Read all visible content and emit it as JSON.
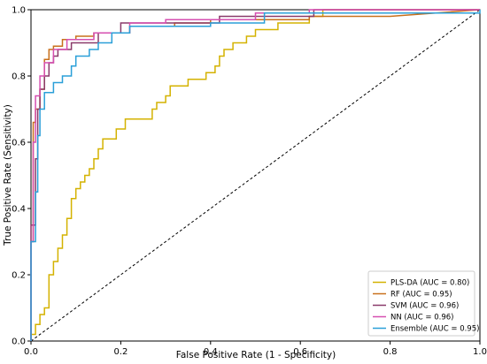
{
  "chart_data": {
    "type": "line",
    "title": "",
    "xlabel": "False Positive Rate (1 - Specificity)",
    "ylabel": "True Positive Rate (Sensitivity)",
    "xlim": [
      0,
      1
    ],
    "ylim": [
      0,
      1
    ],
    "xticks": [
      "0.0",
      "0.2",
      "0.4",
      "0.6",
      "0.8",
      "1.0"
    ],
    "yticks": [
      "0.0",
      "0.2",
      "0.4",
      "0.6",
      "0.8",
      "1.0"
    ],
    "grid": false,
    "legend_position": "lower-right",
    "chance_line": {
      "style": "dashed",
      "color": "#000000",
      "points": [
        [
          0,
          0
        ],
        [
          1,
          1
        ]
      ]
    },
    "series": [
      {
        "name": "PLS-DA (AUC = 0.80)",
        "color": "#d4b200",
        "points": [
          [
            0,
            0
          ],
          [
            0,
            0.02
          ],
          [
            0.01,
            0.02
          ],
          [
            0.01,
            0.05
          ],
          [
            0.02,
            0.05
          ],
          [
            0.02,
            0.08
          ],
          [
            0.03,
            0.08
          ],
          [
            0.03,
            0.1
          ],
          [
            0.04,
            0.1
          ],
          [
            0.04,
            0.2
          ],
          [
            0.05,
            0.2
          ],
          [
            0.05,
            0.24
          ],
          [
            0.06,
            0.24
          ],
          [
            0.06,
            0.28
          ],
          [
            0.07,
            0.28
          ],
          [
            0.07,
            0.32
          ],
          [
            0.08,
            0.32
          ],
          [
            0.08,
            0.37
          ],
          [
            0.09,
            0.37
          ],
          [
            0.09,
            0.43
          ],
          [
            0.1,
            0.43
          ],
          [
            0.1,
            0.46
          ],
          [
            0.11,
            0.46
          ],
          [
            0.11,
            0.48
          ],
          [
            0.12,
            0.48
          ],
          [
            0.12,
            0.5
          ],
          [
            0.13,
            0.5
          ],
          [
            0.13,
            0.52
          ],
          [
            0.14,
            0.52
          ],
          [
            0.14,
            0.55
          ],
          [
            0.15,
            0.55
          ],
          [
            0.15,
            0.58
          ],
          [
            0.16,
            0.58
          ],
          [
            0.16,
            0.61
          ],
          [
            0.19,
            0.61
          ],
          [
            0.19,
            0.64
          ],
          [
            0.21,
            0.64
          ],
          [
            0.21,
            0.67
          ],
          [
            0.27,
            0.67
          ],
          [
            0.27,
            0.7
          ],
          [
            0.28,
            0.7
          ],
          [
            0.28,
            0.72
          ],
          [
            0.3,
            0.72
          ],
          [
            0.3,
            0.74
          ],
          [
            0.31,
            0.74
          ],
          [
            0.31,
            0.77
          ],
          [
            0.35,
            0.77
          ],
          [
            0.35,
            0.79
          ],
          [
            0.39,
            0.79
          ],
          [
            0.39,
            0.81
          ],
          [
            0.41,
            0.81
          ],
          [
            0.41,
            0.83
          ],
          [
            0.42,
            0.83
          ],
          [
            0.42,
            0.86
          ],
          [
            0.43,
            0.86
          ],
          [
            0.43,
            0.88
          ],
          [
            0.45,
            0.88
          ],
          [
            0.45,
            0.9
          ],
          [
            0.48,
            0.9
          ],
          [
            0.48,
            0.92
          ],
          [
            0.5,
            0.92
          ],
          [
            0.5,
            0.94
          ],
          [
            0.55,
            0.94
          ],
          [
            0.55,
            0.96
          ],
          [
            0.62,
            0.96
          ],
          [
            0.62,
            0.98
          ],
          [
            0.65,
            0.98
          ],
          [
            0.65,
            1.0
          ],
          [
            1.0,
            1.0
          ]
        ]
      },
      {
        "name": "RF (AUC = 0.95)",
        "color": "#c8701c",
        "points": [
          [
            0,
            0
          ],
          [
            0,
            0.3
          ],
          [
            0.005,
            0.3
          ],
          [
            0.005,
            0.66
          ],
          [
            0.01,
            0.66
          ],
          [
            0.01,
            0.7
          ],
          [
            0.02,
            0.7
          ],
          [
            0.02,
            0.76
          ],
          [
            0.03,
            0.76
          ],
          [
            0.03,
            0.85
          ],
          [
            0.04,
            0.85
          ],
          [
            0.04,
            0.88
          ],
          [
            0.05,
            0.88
          ],
          [
            0.05,
            0.89
          ],
          [
            0.07,
            0.89
          ],
          [
            0.07,
            0.91
          ],
          [
            0.1,
            0.91
          ],
          [
            0.1,
            0.92
          ],
          [
            0.14,
            0.92
          ],
          [
            0.14,
            0.93
          ],
          [
            0.22,
            0.93
          ],
          [
            0.22,
            0.95
          ],
          [
            0.32,
            0.95
          ],
          [
            0.32,
            0.96
          ],
          [
            0.4,
            0.96
          ],
          [
            0.4,
            0.97
          ],
          [
            0.62,
            0.97
          ],
          [
            0.62,
            0.98
          ],
          [
            0.8,
            0.98
          ],
          [
            1.0,
            1.0
          ]
        ]
      },
      {
        "name": "SVM (AUC = 0.96)",
        "color": "#8a3a6a",
        "points": [
          [
            0,
            0
          ],
          [
            0,
            0.35
          ],
          [
            0.01,
            0.35
          ],
          [
            0.01,
            0.55
          ],
          [
            0.015,
            0.55
          ],
          [
            0.015,
            0.7
          ],
          [
            0.02,
            0.7
          ],
          [
            0.02,
            0.76
          ],
          [
            0.03,
            0.76
          ],
          [
            0.03,
            0.8
          ],
          [
            0.04,
            0.8
          ],
          [
            0.04,
            0.84
          ],
          [
            0.05,
            0.84
          ],
          [
            0.05,
            0.86
          ],
          [
            0.06,
            0.86
          ],
          [
            0.06,
            0.88
          ],
          [
            0.09,
            0.88
          ],
          [
            0.09,
            0.9
          ],
          [
            0.15,
            0.9
          ],
          [
            0.15,
            0.93
          ],
          [
            0.2,
            0.93
          ],
          [
            0.2,
            0.96
          ],
          [
            0.42,
            0.96
          ],
          [
            0.42,
            0.98
          ],
          [
            0.63,
            0.98
          ],
          [
            0.63,
            1.0
          ],
          [
            1.0,
            1.0
          ]
        ]
      },
      {
        "name": "NN (AUC = 0.96)",
        "color": "#d64fb0",
        "points": [
          [
            0,
            0
          ],
          [
            0,
            0.3
          ],
          [
            0.005,
            0.3
          ],
          [
            0.005,
            0.6
          ],
          [
            0.01,
            0.6
          ],
          [
            0.01,
            0.74
          ],
          [
            0.02,
            0.74
          ],
          [
            0.02,
            0.8
          ],
          [
            0.03,
            0.8
          ],
          [
            0.03,
            0.84
          ],
          [
            0.05,
            0.84
          ],
          [
            0.05,
            0.88
          ],
          [
            0.08,
            0.88
          ],
          [
            0.08,
            0.91
          ],
          [
            0.14,
            0.91
          ],
          [
            0.14,
            0.93
          ],
          [
            0.22,
            0.93
          ],
          [
            0.22,
            0.96
          ],
          [
            0.3,
            0.96
          ],
          [
            0.3,
            0.97
          ],
          [
            0.5,
            0.97
          ],
          [
            0.5,
            0.99
          ],
          [
            0.62,
            0.99
          ],
          [
            0.62,
            1.0
          ],
          [
            1.0,
            1.0
          ]
        ]
      },
      {
        "name": "Ensemble (AUC = 0.95)",
        "color": "#2a9fd8",
        "points": [
          [
            0,
            0
          ],
          [
            0,
            0.3
          ],
          [
            0.01,
            0.3
          ],
          [
            0.01,
            0.45
          ],
          [
            0.015,
            0.45
          ],
          [
            0.015,
            0.62
          ],
          [
            0.02,
            0.62
          ],
          [
            0.02,
            0.7
          ],
          [
            0.03,
            0.7
          ],
          [
            0.03,
            0.75
          ],
          [
            0.05,
            0.75
          ],
          [
            0.05,
            0.78
          ],
          [
            0.07,
            0.78
          ],
          [
            0.07,
            0.8
          ],
          [
            0.09,
            0.8
          ],
          [
            0.09,
            0.83
          ],
          [
            0.1,
            0.83
          ],
          [
            0.1,
            0.86
          ],
          [
            0.13,
            0.86
          ],
          [
            0.13,
            0.88
          ],
          [
            0.15,
            0.88
          ],
          [
            0.15,
            0.9
          ],
          [
            0.18,
            0.9
          ],
          [
            0.18,
            0.93
          ],
          [
            0.22,
            0.93
          ],
          [
            0.22,
            0.95
          ],
          [
            0.4,
            0.95
          ],
          [
            0.4,
            0.96
          ],
          [
            0.52,
            0.96
          ],
          [
            0.52,
            0.99
          ],
          [
            1.0,
            0.99
          ],
          [
            1.0,
            1.0
          ]
        ]
      }
    ]
  }
}
